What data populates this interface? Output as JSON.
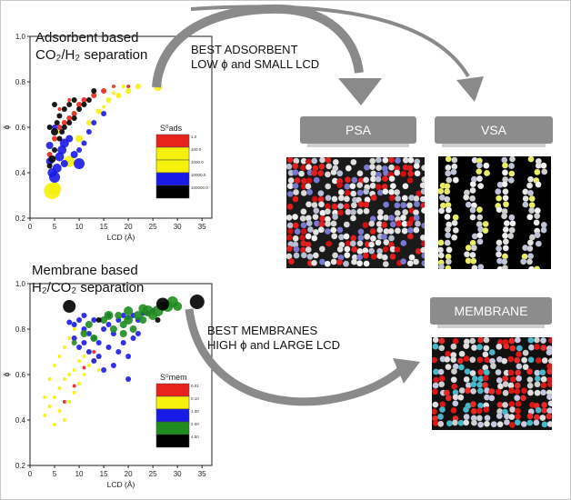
{
  "panels": {
    "adsorbent": {
      "title_line1": "Adsorbent based",
      "title_line2": "CO₂/H₂ separation"
    },
    "membrane": {
      "title_line1": "Membrane based",
      "title_line2": "H₂/CO₂ separation"
    }
  },
  "captions": {
    "adsorbent": {
      "line1": "BEST ADSORBENT",
      "line2": "LOW ϕ and SMALL LCD"
    },
    "membrane": {
      "line1": "BEST MEMBRANES",
      "line2": "HIGH ϕ and LARGE LCD"
    }
  },
  "tabs": {
    "psa": "PSA",
    "vsa": "VSA",
    "membrane": "MEMBRANE"
  },
  "colors": {
    "red": "#e8231b",
    "yellow": "#f5f10c",
    "blue": "#1a1ae6",
    "green": "#1f8c1f",
    "black": "#000000",
    "tab": "#8c8c8c",
    "arrow": "#8a8a8a"
  },
  "chart_data": [
    {
      "type": "scatter",
      "xlabel": "LCD (Å)",
      "ylabel": "ϕ",
      "xlim": [
        0,
        37
      ],
      "ylim": [
        0.2,
        1.0
      ],
      "xticks": [
        0,
        5,
        10,
        15,
        20,
        25,
        30,
        35
      ],
      "yticks": [
        0.2,
        0.4,
        0.6,
        0.8,
        1.0
      ],
      "legend_title": "S⁰ads",
      "legend": [
        {
          "color": "#e8231b",
          "label": "1.0"
        },
        {
          "color": "#f5f10c",
          "label": "100.0"
        },
        {
          "color": "#f5f10c",
          "label": "1000.0"
        },
        {
          "color": "#1a1ae6",
          "label": "10000.0"
        },
        {
          "color": "#000000",
          "label": "100000.0"
        }
      ],
      "series": [
        {
          "color": "#f5f10c",
          "points": [
            [
              4.5,
              0.32,
              9
            ],
            [
              5,
              0.33,
              7
            ],
            [
              8,
              0.45,
              6
            ],
            [
              10,
              0.55,
              4
            ],
            [
              12,
              0.62,
              3
            ],
            [
              14,
              0.67,
              3
            ],
            [
              16,
              0.72,
              3
            ],
            [
              18,
              0.74,
              3
            ],
            [
              20,
              0.76,
              3
            ],
            [
              22,
              0.78,
              3
            ],
            [
              26,
              0.78,
              5
            ],
            [
              6,
              0.58,
              2
            ],
            [
              9,
              0.66,
              2
            ],
            [
              11,
              0.7,
              2
            ],
            [
              13,
              0.74,
              2
            ],
            [
              7,
              0.5,
              2
            ],
            [
              15,
              0.69,
              2
            ],
            [
              17,
              0.75,
              2
            ],
            [
              19,
              0.78,
              2
            ]
          ]
        },
        {
          "color": "#e8231b",
          "points": [
            [
              4,
              0.48,
              3
            ],
            [
              5,
              0.55,
              3
            ],
            [
              6,
              0.6,
              3
            ],
            [
              7,
              0.62,
              3
            ],
            [
              8,
              0.64,
              3
            ],
            [
              9,
              0.66,
              3
            ],
            [
              10,
              0.7,
              3
            ],
            [
              11,
              0.72,
              3
            ],
            [
              13,
              0.74,
              3
            ],
            [
              15,
              0.76,
              3
            ],
            [
              17,
              0.78,
              2
            ],
            [
              20,
              0.78,
              2
            ],
            [
              6,
              0.68,
              2
            ],
            [
              8,
              0.72,
              2
            ]
          ]
        },
        {
          "color": "#1a1ae6",
          "points": [
            [
              4,
              0.45,
              4
            ],
            [
              4.5,
              0.4,
              5
            ],
            [
              5,
              0.38,
              6
            ],
            [
              5.5,
              0.42,
              5
            ],
            [
              6,
              0.47,
              5
            ],
            [
              6.5,
              0.5,
              5
            ],
            [
              7,
              0.53,
              5
            ],
            [
              8,
              0.55,
              4
            ],
            [
              9,
              0.48,
              4
            ],
            [
              10,
              0.5,
              3
            ],
            [
              11,
              0.53,
              3
            ],
            [
              12,
              0.58,
              3
            ],
            [
              13,
              0.62,
              3
            ],
            [
              4,
              0.52,
              4
            ],
            [
              5,
              0.6,
              3
            ],
            [
              10,
              0.44,
              6
            ],
            [
              15,
              0.66,
              3
            ],
            [
              7,
              0.44,
              4
            ]
          ]
        },
        {
          "color": "#000000",
          "points": [
            [
              4,
              0.43,
              3
            ],
            [
              4.5,
              0.46,
              4
            ],
            [
              5,
              0.5,
              3
            ],
            [
              5,
              0.58,
              4
            ],
            [
              5.5,
              0.62,
              3
            ],
            [
              6,
              0.55,
              3
            ],
            [
              6,
              0.65,
              3
            ],
            [
              6.5,
              0.58,
              3
            ],
            [
              7,
              0.6,
              3
            ],
            [
              7,
              0.68,
              3
            ],
            [
              8,
              0.62,
              3
            ],
            [
              8,
              0.7,
              3
            ],
            [
              9,
              0.64,
              3
            ],
            [
              9,
              0.72,
              3
            ],
            [
              10,
              0.68,
              3
            ],
            [
              11,
              0.7,
              3
            ],
            [
              12,
              0.72,
              3
            ],
            [
              13,
              0.76,
              3
            ],
            [
              5,
              0.7,
              3
            ],
            [
              4,
              0.6,
              3
            ]
          ]
        }
      ]
    },
    {
      "type": "scatter",
      "xlabel": "LCD (Å)",
      "ylabel": "ϕ",
      "xlim": [
        0,
        37
      ],
      "ylim": [
        0.2,
        1.0
      ],
      "xticks": [
        0,
        5,
        10,
        15,
        20,
        25,
        30,
        35
      ],
      "yticks": [
        0.2,
        0.4,
        0.6,
        0.8,
        1.0
      ],
      "legend_title": "S⁰mem",
      "legend": [
        {
          "color": "#e8231b",
          "label": "0.01"
        },
        {
          "color": "#f5f10c",
          "label": "0.10"
        },
        {
          "color": "#1a1ae6",
          "label": "1.00"
        },
        {
          "color": "#1f8c1f",
          "label": "2.00"
        },
        {
          "color": "#000000",
          "label": "4.50"
        }
      ],
      "series": [
        {
          "color": "#f5f10c",
          "points": [
            [
              3,
              0.42,
              2
            ],
            [
              4,
              0.46,
              2
            ],
            [
              5,
              0.5,
              2
            ],
            [
              6,
              0.54,
              2
            ],
            [
              7,
              0.58,
              2
            ],
            [
              8,
              0.6,
              2
            ],
            [
              9,
              0.62,
              2
            ],
            [
              10,
              0.66,
              2
            ],
            [
              11,
              0.68,
              2
            ],
            [
              12,
              0.64,
              2
            ],
            [
              4,
              0.58,
              2
            ],
            [
              5,
              0.64,
              2
            ],
            [
              6,
              0.68,
              2
            ],
            [
              7,
              0.72,
              2
            ],
            [
              8,
              0.48,
              2
            ],
            [
              9,
              0.52,
              2
            ],
            [
              10,
              0.56,
              2
            ],
            [
              3,
              0.5,
              2
            ],
            [
              6,
              0.44,
              2
            ],
            [
              7,
              0.4,
              2
            ],
            [
              5,
              0.38,
              2
            ],
            [
              11,
              0.6,
              2
            ],
            [
              12,
              0.7,
              2
            ],
            [
              8,
              0.76,
              2
            ],
            [
              9,
              0.8,
              2
            ],
            [
              13,
              0.66,
              2
            ],
            [
              14,
              0.62,
              2
            ]
          ]
        },
        {
          "color": "#e8231b",
          "points": [
            [
              7,
              0.48,
              2
            ],
            [
              9,
              0.55,
              2
            ],
            [
              11,
              0.63,
              2
            ],
            [
              13,
              0.7,
              2
            ]
          ]
        },
        {
          "color": "#1a1ae6",
          "points": [
            [
              8,
              0.83,
              3
            ],
            [
              9,
              0.82,
              3
            ],
            [
              10,
              0.84,
              3
            ],
            [
              11,
              0.8,
              3
            ],
            [
              12,
              0.78,
              3
            ],
            [
              13,
              0.76,
              3
            ],
            [
              14,
              0.74,
              3
            ],
            [
              15,
              0.8,
              3
            ],
            [
              16,
              0.82,
              3
            ],
            [
              17,
              0.78,
              3
            ],
            [
              18,
              0.84,
              3
            ],
            [
              19,
              0.86,
              3
            ],
            [
              20,
              0.85,
              3
            ],
            [
              21,
              0.86,
              3
            ],
            [
              22,
              0.84,
              3
            ],
            [
              23,
              0.87,
              3
            ],
            [
              24,
              0.87,
              3
            ],
            [
              25,
              0.88,
              3
            ],
            [
              10,
              0.72,
              3
            ],
            [
              12,
              0.7,
              3
            ],
            [
              14,
              0.68,
              3
            ],
            [
              16,
              0.72,
              3
            ],
            [
              9,
              0.76,
              3
            ],
            [
              11,
              0.74,
              3
            ],
            [
              13,
              0.66,
              3
            ],
            [
              15,
              0.62,
              3
            ],
            [
              19,
              0.74,
              3
            ],
            [
              21,
              0.76,
              3
            ],
            [
              17,
              0.64,
              3
            ],
            [
              20,
              0.68,
              3
            ],
            [
              11,
              0.86,
              3
            ],
            [
              13,
              0.84,
              3
            ],
            [
              16,
              0.86,
              3
            ],
            [
              18,
              0.7,
              3
            ],
            [
              22,
              0.78,
              3
            ],
            [
              20,
              0.58,
              3
            ]
          ]
        },
        {
          "color": "#1f8c1f",
          "points": [
            [
              15,
              0.84,
              4
            ],
            [
              16,
              0.86,
              5
            ],
            [
              18,
              0.86,
              4
            ],
            [
              19,
              0.82,
              4
            ],
            [
              20,
              0.84,
              5
            ],
            [
              21,
              0.8,
              4
            ],
            [
              22,
              0.86,
              5
            ],
            [
              23,
              0.84,
              4
            ],
            [
              24,
              0.88,
              6
            ],
            [
              25,
              0.86,
              5
            ],
            [
              26,
              0.88,
              6
            ],
            [
              27,
              0.9,
              5
            ],
            [
              28,
              0.9,
              6
            ],
            [
              29,
              0.92,
              6
            ],
            [
              30,
              0.9,
              5
            ],
            [
              20,
              0.88,
              5
            ],
            [
              23,
              0.89,
              5
            ],
            [
              12,
              0.82,
              4
            ],
            [
              13,
              0.76,
              4
            ],
            [
              17,
              0.8,
              4
            ],
            [
              11,
              0.78,
              4
            ],
            [
              9,
              0.74,
              3
            ],
            [
              19,
              0.78,
              4
            ]
          ]
        },
        {
          "color": "#000000",
          "points": [
            [
              8,
              0.9,
              7
            ],
            [
              27,
              0.91,
              7
            ],
            [
              34,
              0.92,
              8
            ],
            [
              14,
              0.84,
              3
            ],
            [
              26,
              0.84,
              3
            ]
          ]
        }
      ]
    }
  ]
}
